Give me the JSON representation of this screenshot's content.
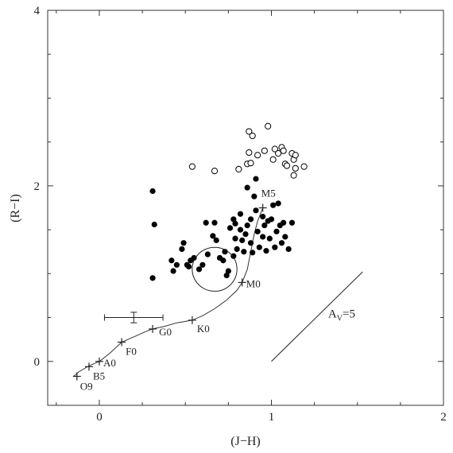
{
  "chart_data": {
    "type": "scatter",
    "xlabel": "(J−H)",
    "ylabel": "(R−I)",
    "xlim": [
      -0.3,
      2.0
    ],
    "ylim": [
      -0.5,
      4.0
    ],
    "grid": false,
    "x_ticks": [
      {
        "value": 0,
        "label": "0"
      },
      {
        "value": 1,
        "label": "1"
      },
      {
        "value": 2,
        "label": "2"
      }
    ],
    "y_ticks": [
      {
        "value": 0,
        "label": "0"
      },
      {
        "value": 2,
        "label": "2"
      },
      {
        "value": 4,
        "label": "4"
      }
    ],
    "filled_points": [
      [
        0.31,
        1.94
      ],
      [
        0.32,
        1.56
      ],
      [
        0.31,
        0.95
      ],
      [
        0.42,
        1.15
      ],
      [
        0.43,
        1.03
      ],
      [
        0.45,
        1.1
      ],
      [
        0.48,
        1.28
      ],
      [
        0.49,
        1.35
      ],
      [
        0.51,
        1.1
      ],
      [
        0.52,
        1.08
      ],
      [
        0.53,
        1.15
      ],
      [
        0.55,
        1.18
      ],
      [
        0.58,
        1.05
      ],
      [
        0.6,
        1.1
      ],
      [
        0.62,
        1.58
      ],
      [
        0.63,
        1.22
      ],
      [
        0.66,
        1.43
      ],
      [
        0.67,
        1.58
      ],
      [
        0.68,
        1.38
      ],
      [
        0.7,
        1.18
      ],
      [
        0.72,
        1.15
      ],
      [
        0.73,
        1.25
      ],
      [
        0.75,
        1.03
      ],
      [
        0.74,
        0.98
      ],
      [
        0.76,
        1.52
      ],
      [
        0.78,
        1.62
      ],
      [
        0.79,
        1.57
      ],
      [
        0.79,
        1.4
      ],
      [
        0.8,
        1.28
      ],
      [
        0.78,
        1.2
      ],
      [
        0.82,
        1.68
      ],
      [
        0.82,
        1.5
      ],
      [
        0.83,
        1.38
      ],
      [
        0.84,
        1.25
      ],
      [
        0.85,
        1.45
      ],
      [
        0.86,
        1.55
      ],
      [
        0.88,
        1.62
      ],
      [
        0.88,
        1.35
      ],
      [
        0.89,
        1.24
      ],
      [
        0.9,
        1.88
      ],
      [
        0.91,
        1.72
      ],
      [
        0.92,
        1.48
      ],
      [
        0.93,
        1.3
      ],
      [
        0.95,
        1.65
      ],
      [
        0.95,
        1.42
      ],
      [
        0.96,
        1.55
      ],
      [
        0.97,
        1.26
      ],
      [
        0.98,
        1.6
      ],
      [
        0.99,
        1.4
      ],
      [
        1.0,
        1.62
      ],
      [
        1.01,
        1.78
      ],
      [
        1.02,
        1.3
      ],
      [
        1.03,
        1.48
      ],
      [
        1.04,
        1.8
      ],
      [
        1.05,
        1.55
      ],
      [
        1.06,
        1.35
      ],
      [
        1.07,
        1.58
      ],
      [
        1.08,
        1.42
      ],
      [
        1.1,
        1.28
      ],
      [
        1.12,
        1.58
      ],
      [
        0.91,
        2.08
      ],
      [
        0.86,
        1.98
      ]
    ],
    "open_points": [
      [
        0.54,
        2.22
      ],
      [
        0.67,
        2.17
      ],
      [
        0.81,
        2.19
      ],
      [
        0.86,
        2.25
      ],
      [
        0.87,
        2.38
      ],
      [
        0.87,
        2.62
      ],
      [
        0.89,
        2.57
      ],
      [
        0.92,
        2.35
      ],
      [
        0.96,
        2.4
      ],
      [
        0.98,
        2.68
      ],
      [
        1.01,
        2.3
      ],
      [
        1.02,
        2.42
      ],
      [
        1.04,
        2.37
      ],
      [
        1.06,
        2.44
      ],
      [
        1.07,
        2.4
      ],
      [
        1.08,
        2.25
      ],
      [
        1.09,
        2.23
      ],
      [
        1.12,
        2.37
      ],
      [
        1.13,
        2.3
      ],
      [
        1.14,
        2.35
      ],
      [
        1.14,
        2.2
      ],
      [
        1.13,
        2.12
      ],
      [
        1.19,
        2.22
      ],
      [
        0.88,
        2.26
      ]
    ],
    "sequence_curve": [
      [
        -0.15,
        -0.17
      ],
      [
        -0.12,
        -0.12
      ],
      [
        -0.06,
        -0.05
      ],
      [
        0.0,
        0.0
      ],
      [
        0.06,
        0.09
      ],
      [
        0.13,
        0.22
      ],
      [
        0.2,
        0.28
      ],
      [
        0.27,
        0.34
      ],
      [
        0.31,
        0.37
      ],
      [
        0.38,
        0.4
      ],
      [
        0.45,
        0.44
      ],
      [
        0.54,
        0.47
      ],
      [
        0.6,
        0.52
      ],
      [
        0.67,
        0.6
      ],
      [
        0.74,
        0.7
      ],
      [
        0.8,
        0.81
      ],
      [
        0.83,
        0.9
      ],
      [
        0.86,
        1.05
      ],
      [
        0.88,
        1.25
      ],
      [
        0.9,
        1.45
      ],
      [
        0.92,
        1.6
      ],
      [
        0.95,
        1.75
      ]
    ],
    "spectral_types": [
      {
        "label": "O9",
        "x": -0.13,
        "y": -0.17
      },
      {
        "label": "B5",
        "x": -0.06,
        "y": -0.06
      },
      {
        "label": "A0",
        "x": 0.0,
        "y": 0.0
      },
      {
        "label": "F0",
        "x": 0.13,
        "y": 0.22
      },
      {
        "label": "G0",
        "x": 0.31,
        "y": 0.37
      },
      {
        "label": "K0",
        "x": 0.54,
        "y": 0.47
      },
      {
        "label": "M0",
        "x": 0.83,
        "y": 0.9
      },
      {
        "label": "M5",
        "x": 0.95,
        "y": 1.75
      }
    ],
    "ellipse": {
      "cx": 0.67,
      "cy": 1.05,
      "rx": 0.13,
      "ry": 0.25
    },
    "error_bar": {
      "x": 0.2,
      "y": 0.5,
      "x_err": 0.17,
      "y_err": 0.06
    },
    "extinction_vector": {
      "x1": 1.0,
      "y1": 0.0,
      "x2": 1.53,
      "y2": 1.02,
      "label_main": "A",
      "label_sub": "V",
      "label_rest": "=5"
    }
  }
}
